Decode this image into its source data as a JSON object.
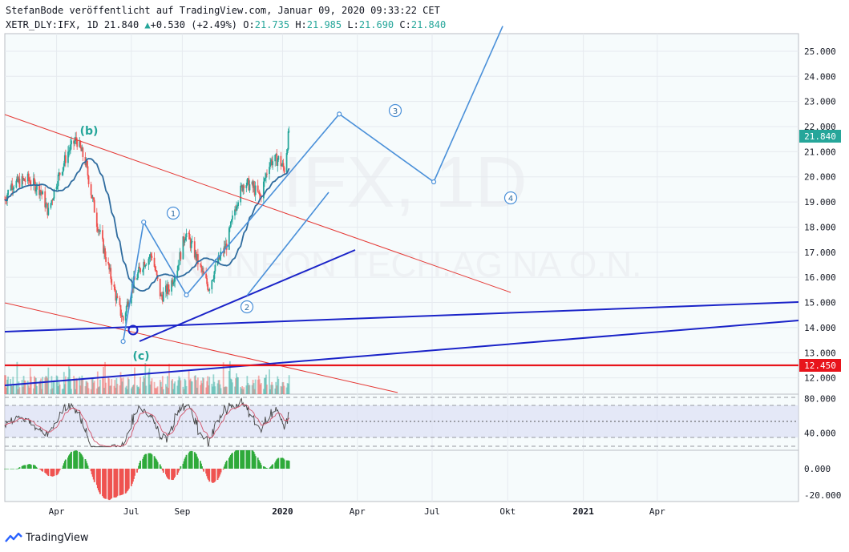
{
  "header": {
    "line1": "StefanBode veröffentlicht auf TradingView.com, Januar 09, 2020 09:33:22 CET",
    "symbol": "XETR_DLY:IFX, 1D",
    "last": "21.840",
    "up_arrow": "▲",
    "change": "+0.530 (+2.49%)",
    "o_label": "O:",
    "o": "21.735",
    "h_label": "H:",
    "h": "21.985",
    "l_label": "L:",
    "l": "21.690",
    "c_label": "C:",
    "c": "21.840"
  },
  "watermark": {
    "symbol": "IFX, 1D",
    "name": "INFINEON TECH.AG NA O.N."
  },
  "footer": {
    "brand": "TradingView"
  },
  "colors": {
    "up": "#26a69a",
    "down": "#ef5350",
    "ma": "#2f6c9f",
    "channel": "#e53935",
    "support": "#1a23c8",
    "wave": "#4a90d9",
    "level": "#e8141b",
    "last_badge": "#26a69a"
  },
  "chart_data": {
    "type": "candlestick",
    "price_axis": {
      "ticks": [
        "25.000",
        "24.000",
        "23.000",
        "22.000",
        "21.000",
        "20.000",
        "19.000",
        "18.000",
        "17.000",
        "16.000",
        "15.000",
        "14.000",
        "13.000",
        "12.000"
      ],
      "range": [
        11.35,
        25.7
      ],
      "last_price_label": "21.840",
      "level_label": "12.450"
    },
    "time_axis": {
      "ticks": [
        "Apr",
        "Jul",
        "Sep",
        "2020",
        "Apr",
        "Jul",
        "Okt",
        "2021",
        "Apr"
      ],
      "bold": [
        "2020",
        "2021"
      ]
    },
    "level_line": 12.45,
    "waves": {
      "labels": [
        "(b)",
        "(c)",
        "1",
        "2",
        "3",
        "4"
      ],
      "path": [
        {
          "date": "2019-06-21",
          "price": 13.45
        },
        {
          "date": "2019-07-16",
          "price": 18.2
        },
        {
          "date": "2019-09-06",
          "price": 15.3
        },
        {
          "date": "2020-03-10",
          "price": 22.5
        },
        {
          "date": "2020-07-03",
          "price": 19.8
        },
        {
          "date": "2020-09-25",
          "price": 26.0
        }
      ]
    },
    "rsi": {
      "ticks": [
        "80.000",
        "40.000"
      ],
      "range": [
        20,
        85
      ],
      "band_upper": 70,
      "band_lower": 30,
      "outer_upper": 80,
      "outer_lower": 25,
      "mid": 50
    },
    "macd": {
      "ticks": [
        "0.000",
        "-20.000"
      ],
      "range": [
        -25,
        14
      ]
    }
  }
}
